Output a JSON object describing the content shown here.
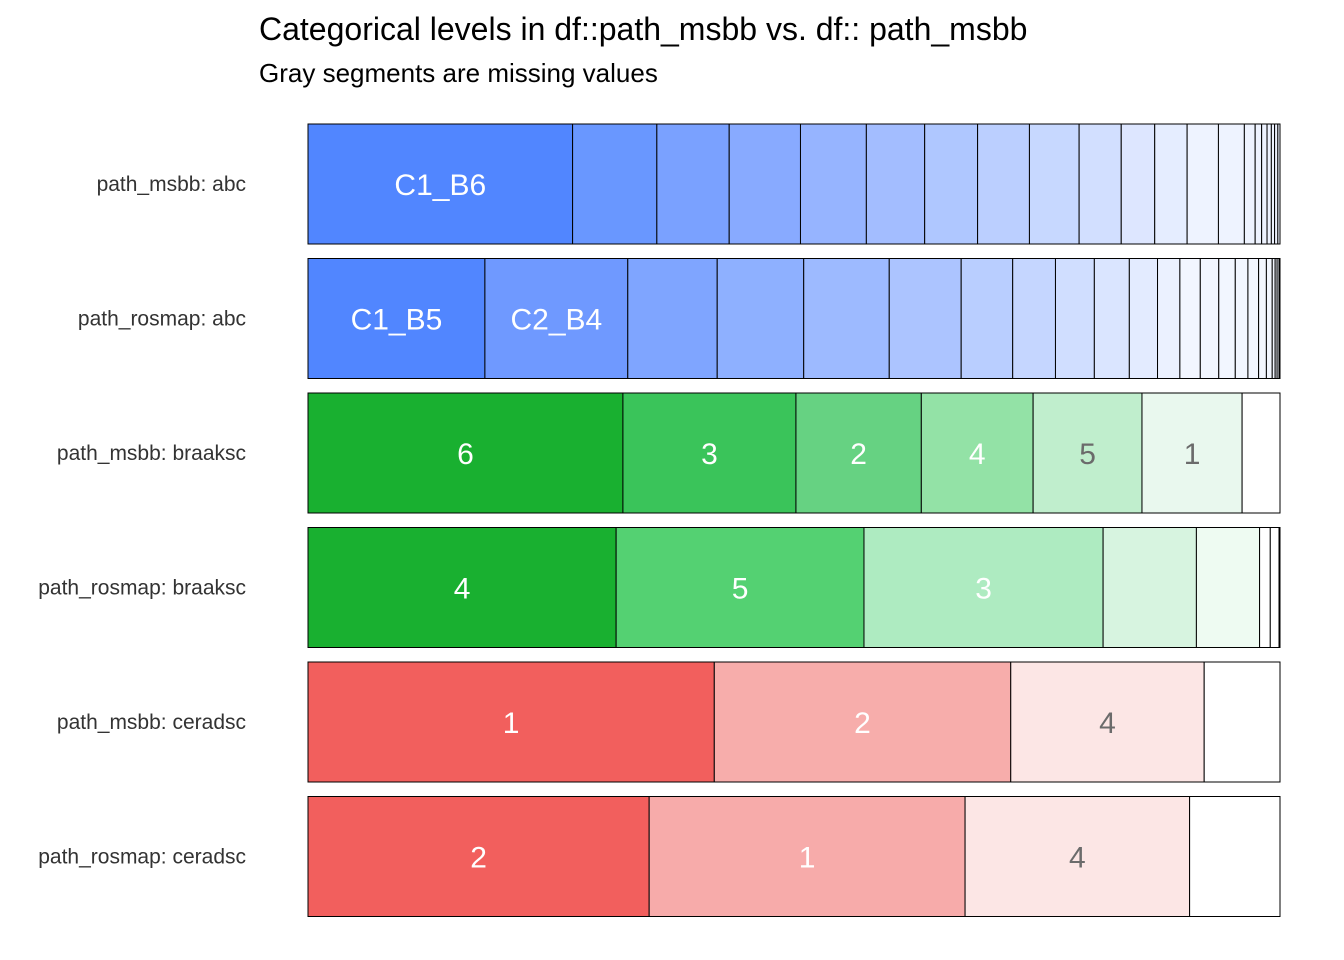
{
  "chart_data": {
    "type": "bar",
    "orientation": "horizontal-stacked-proportion",
    "title": "Categorical levels in df::path_msbb vs. df:: path_msbb",
    "subtitle": "Gray segments are missing values",
    "xlim": [
      0,
      1
    ],
    "rows": [
      {
        "label": "path_msbb: abc",
        "colors": [
          "#5186ff",
          "#6997ff",
          "#7aa1ff",
          "#88aaff",
          "#96b4ff",
          "#a3bdff",
          "#afc7ff",
          "#bbcfff",
          "#c7d8ff",
          "#d2dfff",
          "#dde6ff",
          "#e5edff",
          "#eef3ff"
        ],
        "segments": [
          {
            "label": "C1_B6",
            "value": 0.245
          },
          {
            "label": "",
            "value": 0.078
          },
          {
            "label": "",
            "value": 0.067
          },
          {
            "label": "",
            "value": 0.066
          },
          {
            "label": "",
            "value": 0.061
          },
          {
            "label": "",
            "value": 0.054
          },
          {
            "label": "",
            "value": 0.049
          },
          {
            "label": "",
            "value": 0.048
          },
          {
            "label": "",
            "value": 0.046
          },
          {
            "label": "",
            "value": 0.039
          },
          {
            "label": "",
            "value": 0.031
          },
          {
            "label": "",
            "value": 0.03
          },
          {
            "label": "",
            "value": 0.029
          },
          {
            "label": "",
            "value": 0.024
          },
          {
            "label": "",
            "value": 0.01
          },
          {
            "label": "",
            "value": 0.006
          },
          {
            "label": "",
            "value": 0.005
          },
          {
            "label": "",
            "value": 0.004
          },
          {
            "label": "",
            "value": 0.003
          },
          {
            "label": "",
            "value": 0.003
          },
          {
            "label": "",
            "value": 0.002
          }
        ]
      },
      {
        "label": "path_rosmap: abc",
        "colors": [
          "#5186ff",
          "#6f99ff",
          "#7fa5ff",
          "#8eb0ff",
          "#9dbaff",
          "#acc4ff",
          "#b9ceff",
          "#c5d6ff",
          "#d0deff",
          "#dae5ff",
          "#e3ebff",
          "#ebf1ff",
          "#f2f6ff"
        ],
        "segments": [
          {
            "label": "C1_B5",
            "value": 0.182
          },
          {
            "label": "C2_B4",
            "value": 0.147
          },
          {
            "label": "",
            "value": 0.092
          },
          {
            "label": "",
            "value": 0.089
          },
          {
            "label": "",
            "value": 0.088
          },
          {
            "label": "",
            "value": 0.074
          },
          {
            "label": "",
            "value": 0.053
          },
          {
            "label": "",
            "value": 0.044
          },
          {
            "label": "",
            "value": 0.04
          },
          {
            "label": "",
            "value": 0.036
          },
          {
            "label": "",
            "value": 0.029
          },
          {
            "label": "",
            "value": 0.023
          },
          {
            "label": "",
            "value": 0.021
          },
          {
            "label": "",
            "value": 0.019
          },
          {
            "label": "",
            "value": 0.017
          },
          {
            "label": "",
            "value": 0.013
          },
          {
            "label": "",
            "value": 0.011
          },
          {
            "label": "",
            "value": 0.008
          },
          {
            "label": "",
            "value": 0.006
          },
          {
            "label": "",
            "value": 0.003
          },
          {
            "label": "",
            "value": 0.002
          },
          {
            "label": "",
            "value": 0.002
          },
          {
            "label": "",
            "value": 0.001
          }
        ]
      },
      {
        "label": "path_msbb: braaksc",
        "colors": [
          "#19b030",
          "#3ac45a",
          "#66d282",
          "#93e2a6",
          "#c0eecd",
          "#e9f8ee",
          "#ffffff"
        ],
        "segments": [
          {
            "label": "6",
            "value": 0.324
          },
          {
            "label": "3",
            "value": 0.178
          },
          {
            "label": "2",
            "value": 0.129
          },
          {
            "label": "4",
            "value": 0.115
          },
          {
            "label": "5",
            "value": 0.112
          },
          {
            "label": "1",
            "value": 0.103
          },
          {
            "label": "",
            "value": 0.039
          }
        ]
      },
      {
        "label": "path_rosmap: braaksc",
        "colors": [
          "#19b030",
          "#54d172",
          "#aeebc1",
          "#d7f4e0",
          "#eefbf2",
          "#ffffff",
          "#ffffff",
          "#ffffff"
        ],
        "segments": [
          {
            "label": "4",
            "value": 0.317
          },
          {
            "label": "5",
            "value": 0.255
          },
          {
            "label": "3",
            "value": 0.246
          },
          {
            "label": "",
            "value": 0.096
          },
          {
            "label": "",
            "value": 0.065
          },
          {
            "label": "",
            "value": 0.011
          },
          {
            "label": "",
            "value": 0.009
          },
          {
            "label": "",
            "value": 0.001
          }
        ]
      },
      {
        "label": "path_msbb: ceradsc",
        "colors": [
          "#f25f5d",
          "#f7adab",
          "#fce6e5",
          "#ffffff"
        ],
        "segments": [
          {
            "label": "1",
            "value": 0.418
          },
          {
            "label": "2",
            "value": 0.305
          },
          {
            "label": "4",
            "value": 0.199
          },
          {
            "label": "",
            "value": 0.078
          }
        ]
      },
      {
        "label": "path_rosmap: ceradsc",
        "colors": [
          "#f25f5d",
          "#f7abaa",
          "#fce6e5",
          "#ffffff"
        ],
        "segments": [
          {
            "label": "2",
            "value": 0.351
          },
          {
            "label": "1",
            "value": 0.325
          },
          {
            "label": "4",
            "value": 0.231
          },
          {
            "label": "",
            "value": 0.093
          }
        ]
      }
    ]
  }
}
